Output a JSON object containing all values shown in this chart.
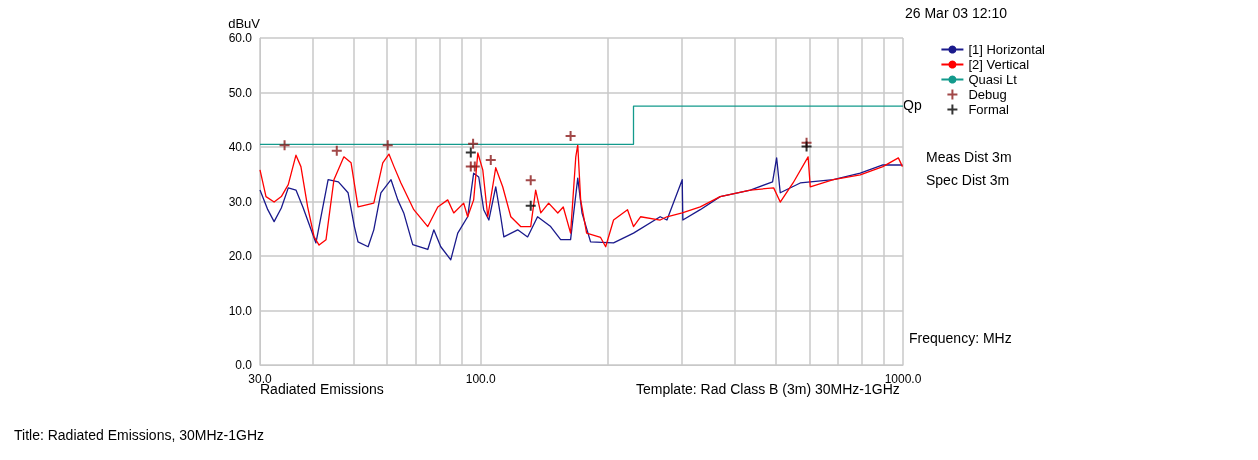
{
  "chart_data": {
    "type": "line",
    "xlabel": "Frequency: MHz",
    "ylabel": "dBuV",
    "log": "x",
    "xlim": [
      30,
      1000
    ],
    "ylim": [
      0,
      60
    ],
    "xticks": [
      {
        "value": 30,
        "label": "30.0"
      },
      {
        "value": 40,
        "label": null
      },
      {
        "value": 50,
        "label": null
      },
      {
        "value": 60,
        "label": null
      },
      {
        "value": 70,
        "label": null
      },
      {
        "value": 80,
        "label": null
      },
      {
        "value": 90,
        "label": null
      },
      {
        "value": 100,
        "label": "100.0"
      },
      {
        "value": 200,
        "label": null
      },
      {
        "value": 300,
        "label": null
      },
      {
        "value": 400,
        "label": null
      },
      {
        "value": 500,
        "label": null
      },
      {
        "value": 600,
        "label": null
      },
      {
        "value": 700,
        "label": null
      },
      {
        "value": 800,
        "label": null
      },
      {
        "value": 900,
        "label": null
      },
      {
        "value": 1000,
        "label": "1000.0"
      }
    ],
    "yticks": [
      {
        "value": 0,
        "label": "0.0"
      },
      {
        "value": 10,
        "label": "10.0"
      },
      {
        "value": 20,
        "label": "20.0"
      },
      {
        "value": 30,
        "label": "30.0"
      },
      {
        "value": 40,
        "label": "40.0"
      },
      {
        "value": 50,
        "label": "50.0"
      },
      {
        "value": 60,
        "label": "60.0"
      }
    ],
    "grid": true,
    "legend": "top right",
    "series": [
      {
        "name": "[1] Horizontal",
        "color": "#1a1a8c",
        "marker": "none",
        "x": [
          30.0,
          31.3,
          32.4,
          33.7,
          35.0,
          36.5,
          37.9,
          40.7,
          43.5,
          46.0,
          48.5,
          50.2,
          51.2,
          54.1,
          55.8,
          58.0,
          61.3,
          63.6,
          65.7,
          69.0,
          74.9,
          77.4,
          80.4,
          84.9,
          88.2,
          93.1,
          96.2,
          98.9,
          101.6,
          104.5,
          108.5,
          111.5,
          113.4,
          122.3,
          129.1,
          136.3,
          146.4,
          154.6,
          163.2,
          169.7,
          173.7,
          182.0,
          206.3,
          230.0,
          266,
          276,
          300,
          301,
          331,
          369,
          435,
          491,
          502,
          512,
          571,
          684,
          792,
          896,
          997
        ],
        "values": [
          32.1,
          28.5,
          26.3,
          28.8,
          32.5,
          32.1,
          29.0,
          22.4,
          34.0,
          33.6,
          31.6,
          25.4,
          22.6,
          21.7,
          24.8,
          31.6,
          34.0,
          30.3,
          27.9,
          22.1,
          21.2,
          24.8,
          21.7,
          19.3,
          24.2,
          27.2,
          35.2,
          34.5,
          28.5,
          26.6,
          32.7,
          27.2,
          23.5,
          24.8,
          23.5,
          27.2,
          25.4,
          23.0,
          23.0,
          34.3,
          27.9,
          22.6,
          22.4,
          24.2,
          27.2,
          26.6,
          34.0,
          26.6,
          28.5,
          30.9,
          32.1,
          33.6,
          38.0,
          31.6,
          33.4,
          34.0,
          35.2,
          36.7,
          36.7
        ]
      },
      {
        "name": "[2] Vertical",
        "color": "#ff0000",
        "marker": "none",
        "x": [
          30.0,
          31.0,
          32.4,
          33.7,
          35.0,
          36.5,
          37.5,
          38.9,
          40.3,
          41.4,
          43.0,
          44.9,
          47.4,
          49.3,
          51.2,
          55.8,
          58.6,
          60.6,
          62.3,
          64.7,
          69.4,
          74.9,
          79.1,
          83.5,
          86.3,
          91.1,
          93.1,
          96.2,
          98.4,
          101.1,
          103.9,
          108.5,
          112.7,
          117.8,
          124.3,
          131.3,
          134.9,
          138.7,
          144.8,
          152.2,
          156.8,
          163.2,
          167.9,
          169.7,
          172.4,
          178.1,
          192.2,
          197.6,
          206.3,
          222.6,
          230.0,
          239,
          266,
          276,
          300,
          331,
          369,
          435,
          494,
          512,
          549,
          596,
          603,
          684,
          792,
          896,
          975,
          997
        ],
        "values": [
          35.8,
          30.9,
          29.9,
          30.9,
          33.1,
          38.5,
          36.4,
          29.0,
          23.5,
          22.0,
          23.0,
          34.0,
          38.2,
          37.1,
          29.0,
          29.7,
          37.1,
          38.7,
          36.4,
          33.4,
          28.5,
          25.4,
          29.0,
          30.3,
          27.9,
          29.7,
          27.2,
          30.3,
          38.9,
          35.8,
          27.2,
          36.2,
          32.7,
          27.2,
          25.4,
          25.4,
          32.1,
          27.9,
          29.7,
          27.9,
          29.0,
          24.2,
          38.2,
          40.4,
          30.3,
          24.2,
          23.4,
          21.7,
          26.6,
          28.5,
          25.4,
          27.2,
          26.6,
          27.2,
          27.9,
          29.0,
          30.9,
          32.1,
          32.5,
          29.9,
          33.4,
          38.2,
          32.7,
          34.0,
          34.9,
          36.4,
          38.0,
          36.4
        ]
      },
      {
        "name": "Quasi Lt",
        "type": "step",
        "color": "#139a8c",
        "marker": "none",
        "x": [
          30,
          230,
          1000
        ],
        "values": [
          40.5,
          47.5,
          47.5
        ]
      },
      {
        "name": "Debug",
        "type": "scatter",
        "color": "#8b1a1a",
        "marker": "cross",
        "x": [
          34.3,
          45.6,
          60.2,
          95.9,
          94.7,
          96.8,
          105.6,
          131.3,
          163.2,
          591
        ],
        "values": [
          40.3,
          39.3,
          40.3,
          40.6,
          36.4,
          36.4,
          37.6,
          33.9,
          42.0,
          40.8
        ]
      },
      {
        "name": "Formal",
        "type": "scatter",
        "color": "#000000",
        "marker": "cross",
        "x": [
          94.7,
          131.3,
          591
        ],
        "values": [
          39.0,
          29.2,
          40.1
        ]
      }
    ],
    "annotations": [
      "26 Mar 03 12:10",
      "Qp",
      "Meas Dist 3m",
      "Spec Dist 3m",
      "Radiated Emissions",
      "Template: Rad Class B (3m) 30MHz-1GHz",
      "Title: Radiated Emissions, 30MHz-1GHz"
    ]
  }
}
